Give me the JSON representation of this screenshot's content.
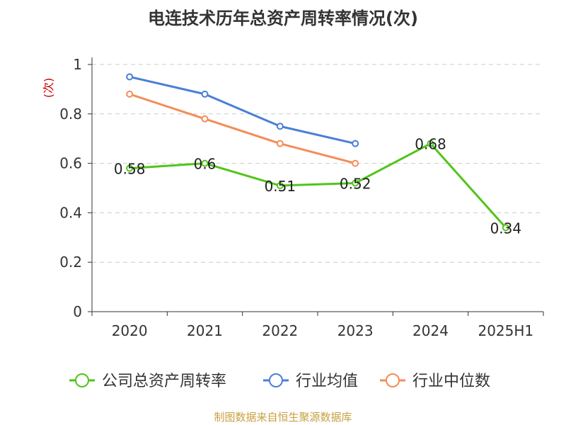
{
  "title": "电连技术历年总资产周转率情况(次)",
  "source": "制图数据来自恒生聚源数据库",
  "chart_data": {
    "type": "line",
    "title": "电连技术历年总资产周转率情况(次)",
    "ylabel": "(次)",
    "xlabel": "",
    "categories": [
      "2020",
      "2021",
      "2022",
      "2023",
      "2024",
      "2025H1"
    ],
    "ylim": [
      0,
      1
    ],
    "yticks": [
      "0",
      "0.2",
      "0.4",
      "0.6",
      "0.8",
      "1"
    ],
    "grid": true,
    "legend_position": "bottom",
    "series": [
      {
        "name": "公司总资产周转率",
        "color": "#52c41a",
        "values": [
          0.58,
          0.6,
          0.51,
          0.52,
          0.68,
          0.34
        ],
        "labels": [
          "0.58",
          "0.6",
          "0.51",
          "0.52",
          "0.68",
          "0.34"
        ]
      },
      {
        "name": "行业均值",
        "color": "#4a7fd6",
        "values": [
          0.95,
          0.88,
          0.75,
          0.68,
          null,
          null
        ]
      },
      {
        "name": "行业中位数",
        "color": "#f58c57",
        "values": [
          0.88,
          0.78,
          0.68,
          0.6,
          null,
          null
        ]
      }
    ]
  }
}
